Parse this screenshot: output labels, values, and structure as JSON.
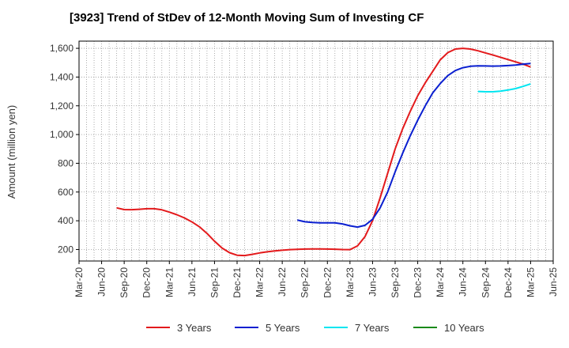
{
  "chart_data": {
    "type": "line",
    "title": "[3923]  Trend of StDev of 12-Month Moving Sum of Investing CF",
    "ylabel": "Amount (million yen)",
    "xlabel": "",
    "ylim": [
      120,
      1650
    ],
    "yticks": [
      200,
      400,
      600,
      800,
      1000,
      1200,
      1400,
      1600
    ],
    "ytick_labels": [
      "200",
      "400",
      "600",
      "800",
      "1,000",
      "1,200",
      "1,400",
      "1,600"
    ],
    "xticks": [
      "Mar-20",
      "Jun-20",
      "Sep-20",
      "Dec-20",
      "Mar-21",
      "Jun-21",
      "Sep-21",
      "Dec-21",
      "Mar-22",
      "Jun-22",
      "Sep-22",
      "Dec-22",
      "Mar-23",
      "Jun-23",
      "Sep-23",
      "Dec-23",
      "Mar-24",
      "Jun-24",
      "Sep-24",
      "Dec-24",
      "Mar-25",
      "Jun-25"
    ],
    "grid": true,
    "legend_position": "bottom",
    "series": [
      {
        "name": "3 Years",
        "color": "#e31a1c",
        "x": [
          "Aug-20",
          "Sep-20",
          "Oct-20",
          "Nov-20",
          "Dec-20",
          "Jan-21",
          "Feb-21",
          "Mar-21",
          "Apr-21",
          "May-21",
          "Jun-21",
          "Jul-21",
          "Aug-21",
          "Sep-21",
          "Oct-21",
          "Nov-21",
          "Dec-21",
          "Jan-22",
          "Feb-22",
          "Mar-22",
          "Apr-22",
          "May-22",
          "Jun-22",
          "Jul-22",
          "Aug-22",
          "Sep-22",
          "Oct-22",
          "Nov-22",
          "Dec-22",
          "Jan-23",
          "Feb-23",
          "Mar-23",
          "Apr-23",
          "May-23",
          "Jun-23",
          "Jul-23",
          "Aug-23",
          "Sep-23",
          "Oct-23",
          "Nov-23",
          "Dec-23",
          "Jan-24",
          "Feb-24",
          "Mar-24",
          "Apr-24",
          "May-24",
          "Jun-24",
          "Jul-24",
          "Aug-24",
          "Sep-24",
          "Oct-24",
          "Nov-24",
          "Dec-24",
          "Jan-25",
          "Feb-25",
          "Mar-25"
        ],
        "values": [
          490,
          478,
          477,
          480,
          484,
          484,
          476,
          460,
          442,
          420,
          392,
          358,
          312,
          258,
          210,
          178,
          160,
          158,
          166,
          176,
          184,
          190,
          195,
          199,
          201,
          203,
          204,
          204,
          203,
          202,
          200,
          199,
          225,
          290,
          400,
          560,
          730,
          900,
          1040,
          1160,
          1270,
          1360,
          1440,
          1520,
          1570,
          1595,
          1600,
          1595,
          1583,
          1568,
          1553,
          1538,
          1522,
          1506,
          1490,
          1470
        ]
      },
      {
        "name": "5 Years",
        "color": "#0a1fd0",
        "x": [
          "Aug-22",
          "Sep-22",
          "Oct-22",
          "Nov-22",
          "Dec-22",
          "Jan-23",
          "Feb-23",
          "Mar-23",
          "Apr-23",
          "May-23",
          "Jun-23",
          "Jul-23",
          "Aug-23",
          "Sep-23",
          "Oct-23",
          "Nov-23",
          "Dec-23",
          "Jan-24",
          "Feb-24",
          "Mar-24",
          "Apr-24",
          "May-24",
          "Jun-24",
          "Jul-24",
          "Aug-24",
          "Sep-24",
          "Oct-24",
          "Nov-24",
          "Dec-24",
          "Jan-25",
          "Feb-25",
          "Mar-25"
        ],
        "values": [
          405,
          393,
          388,
          386,
          386,
          385,
          378,
          365,
          356,
          368,
          410,
          490,
          600,
          740,
          870,
          990,
          1100,
          1200,
          1290,
          1355,
          1410,
          1445,
          1465,
          1475,
          1478,
          1477,
          1476,
          1477,
          1480,
          1484,
          1490,
          1495
        ]
      },
      {
        "name": "7 Years",
        "color": "#00e5f0",
        "x": [
          "Aug-24",
          "Sep-24",
          "Oct-24",
          "Nov-24",
          "Dec-24",
          "Jan-25",
          "Feb-25",
          "Mar-25"
        ],
        "values": [
          1300,
          1298,
          1298,
          1302,
          1310,
          1320,
          1335,
          1352
        ]
      },
      {
        "name": "10 Years",
        "color": "#1a8a1a",
        "x": [],
        "values": []
      }
    ]
  }
}
